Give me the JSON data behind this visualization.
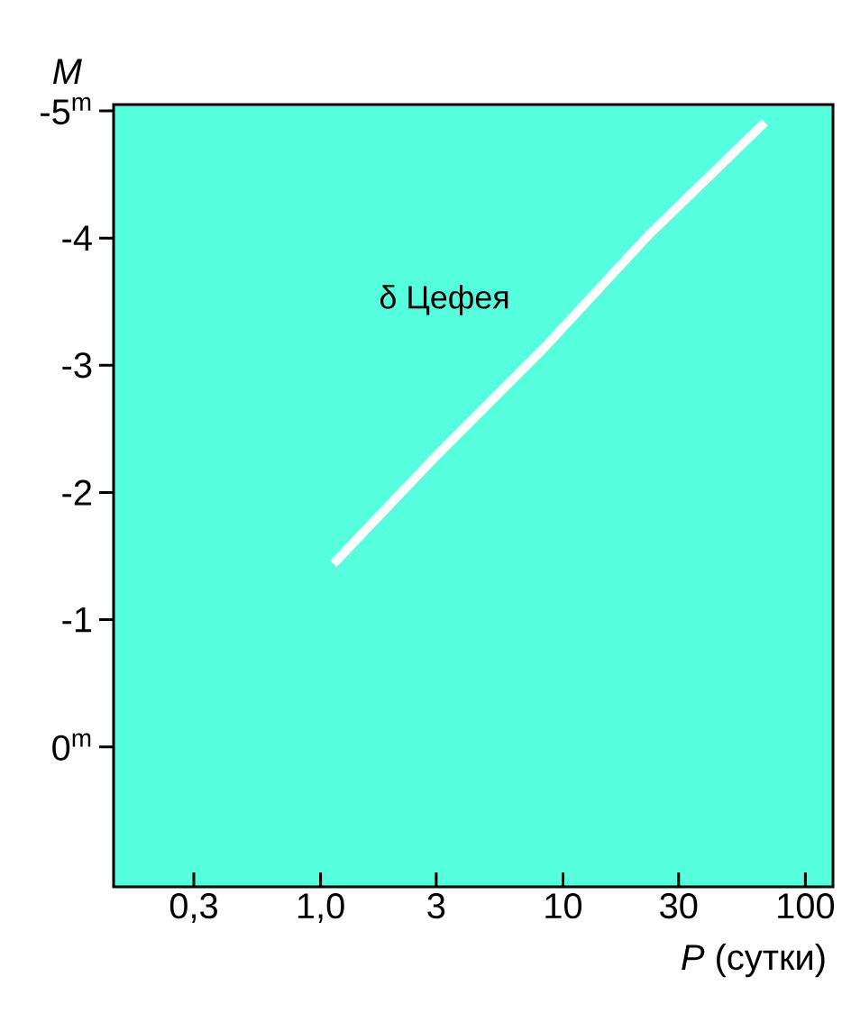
{
  "chart_data": {
    "type": "line",
    "xlabel": "*P* (сутки)",
    "ylabel": "M",
    "x": [
      1.13,
      2.9,
      8.1,
      22.7,
      68
    ],
    "series": [
      {
        "color": "#ffffff",
        "values": [
          -1.44,
          -2.26,
          -3.11,
          -4.03,
          -4.91
        ]
      }
    ],
    "log": "x",
    "xlim": [
      0.14,
      130
    ],
    "ylim": [
      1.1,
      -5.05
    ],
    "xticks": [
      {
        "value": 0.3,
        "label": "0,3"
      },
      {
        "value": 1,
        "label": "1,0"
      },
      3,
      10,
      30,
      100
    ],
    "yticks": [
      {
        "value": -5,
        "label": "-5$^{m}$"
      },
      -4,
      -3,
      -2,
      -1,
      {
        "value": 0,
        "label": "0$^{m}$"
      }
    ],
    "annotations": [
      "δ Цефея"
    ],
    "marker": "none",
    "line_style": "solid"
  }
}
